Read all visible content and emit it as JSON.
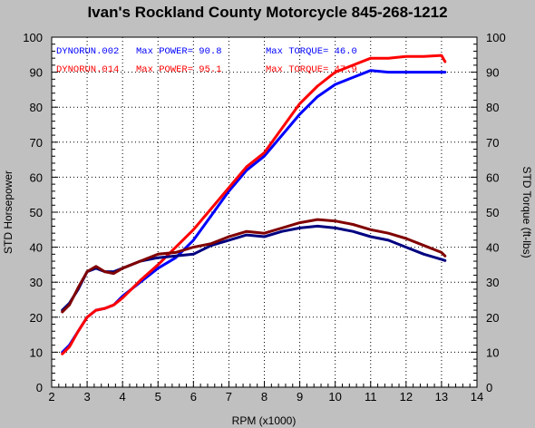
{
  "chart_data": {
    "type": "line",
    "title": "Ivan's Rockland County Motorcycle  845-268-1212",
    "xlabel": "RPM (x1000)",
    "ylabel_left": "STD Horsepower",
    "ylabel_right": "STD Torque (ft-lbs)",
    "xlim": [
      2,
      14
    ],
    "ylim": [
      0,
      100
    ],
    "x_ticks": [
      "2",
      "3",
      "4",
      "5",
      "6",
      "7",
      "8",
      "9",
      "10",
      "11",
      "12",
      "13",
      "14"
    ],
    "y_ticks": [
      "0",
      "10",
      "20",
      "30",
      "40",
      "50",
      "60",
      "70",
      "80",
      "90",
      "100"
    ],
    "grid": true,
    "legend": [
      {
        "run": "DYNORUN.002",
        "power": "Max POWER= 90.8",
        "torque": "Max TORQUE= 46.0",
        "color": "#0000ff"
      },
      {
        "run": "DYNORUN.014",
        "power": "Max POWER= 95.1",
        "torque": "Max TORQUE= 47.9",
        "color": "#ff0000"
      }
    ],
    "series": [
      {
        "name": "DYNORUN.002",
        "measure": "power",
        "color": "#0000ff",
        "x": [
          2.3,
          2.5,
          2.75,
          3.0,
          3.25,
          3.5,
          3.75,
          4.0,
          4.5,
          5.0,
          5.5,
          6.0,
          6.5,
          7.0,
          7.5,
          8.0,
          8.5,
          9.0,
          9.5,
          10.0,
          10.5,
          11.0,
          11.5,
          12.0,
          12.5,
          13.0,
          13.1
        ],
        "y": [
          10,
          12,
          16,
          20,
          22,
          22.5,
          23.5,
          26,
          30,
          34,
          37,
          42,
          49,
          56,
          62,
          66,
          72,
          78,
          83,
          86.5,
          88.5,
          90.5,
          90,
          90,
          90,
          90,
          90
        ]
      },
      {
        "name": "DYNORUN.014",
        "measure": "power",
        "color": "#ff0000",
        "x": [
          2.3,
          2.5,
          2.75,
          3.0,
          3.25,
          3.5,
          3.75,
          4.0,
          4.5,
          5.0,
          5.5,
          6.0,
          6.5,
          7.0,
          7.5,
          8.0,
          8.5,
          9.0,
          9.5,
          10.0,
          10.5,
          11.0,
          11.5,
          12.0,
          12.5,
          13.0,
          13.1
        ],
        "y": [
          9.5,
          11.5,
          16,
          20,
          22,
          22.5,
          23.5,
          25.5,
          30.5,
          35,
          40,
          45,
          51,
          57,
          63,
          67,
          74,
          81,
          86,
          90,
          92,
          94,
          94,
          94.5,
          94.5,
          94.8,
          93
        ]
      },
      {
        "name": "DYNORUN.002",
        "measure": "torque",
        "color": "#000080",
        "x": [
          2.3,
          2.5,
          2.75,
          3.0,
          3.25,
          3.5,
          3.75,
          4.0,
          4.5,
          5.0,
          5.5,
          6.0,
          6.5,
          7.0,
          7.5,
          8.0,
          8.5,
          9.0,
          9.5,
          10.0,
          10.5,
          11.0,
          11.5,
          12.0,
          12.5,
          13.0,
          13.1
        ],
        "y": [
          22,
          24,
          28,
          33,
          34,
          33,
          33,
          34,
          36,
          37,
          37.5,
          38,
          40.5,
          42,
          43.5,
          43,
          44.5,
          45.5,
          46,
          45.5,
          44.5,
          43,
          42,
          40,
          38,
          36.5,
          36.2
        ]
      },
      {
        "name": "DYNORUN.014",
        "measure": "torque",
        "color": "#800000",
        "x": [
          2.3,
          2.5,
          2.75,
          3.0,
          3.25,
          3.5,
          3.75,
          4.0,
          4.5,
          5.0,
          5.5,
          6.0,
          6.5,
          7.0,
          7.5,
          8.0,
          8.5,
          9.0,
          9.5,
          10.0,
          10.5,
          11.0,
          11.5,
          12.0,
          12.5,
          13.0,
          13.1
        ],
        "y": [
          21.5,
          23.5,
          28.5,
          33,
          34.5,
          33,
          32.5,
          34,
          36,
          38,
          38.5,
          40,
          41,
          43,
          44.5,
          44,
          45.5,
          47,
          47.9,
          47.5,
          46.5,
          45,
          44,
          42.5,
          40.5,
          38.5,
          37.5
        ]
      }
    ]
  }
}
